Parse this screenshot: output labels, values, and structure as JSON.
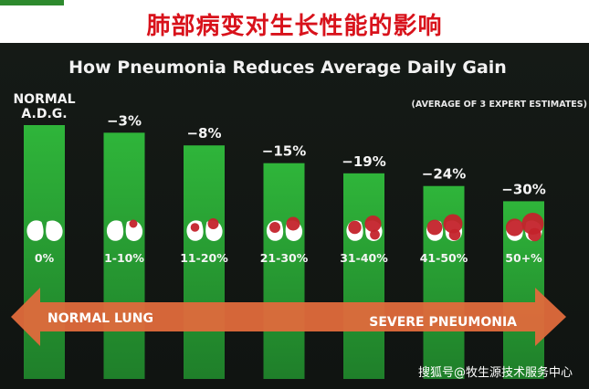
{
  "page_title": "肺部病变对生长性能的影响",
  "watermark": "搜狐号@牧生源技术服务中心",
  "chart_data": {
    "type": "bar",
    "title": "How Pneumonia Reduces Average Daily Gain",
    "subtitle": "(AVERAGE OF 3 EXPERT ESTIMATES)",
    "categories": [
      "0%",
      "1-10%",
      "11-20%",
      "21-30%",
      "31-40%",
      "41-50%",
      "50+%"
    ],
    "value_labels": [
      "NORMAL\nA.D.G.",
      "−3%",
      "−8%",
      "−15%",
      "−19%",
      "−24%",
      "−30%"
    ],
    "values": [
      0,
      -3,
      -8,
      -15,
      -19,
      -24,
      -30
    ],
    "arrow_left_label": "NORMAL LUNG",
    "arrow_right_label": "SEVERE PNEUMONIA",
    "colors": {
      "bar": "#2fb53a",
      "arrow": "#e06a3c",
      "lung_damage": "#c4232b",
      "lung": "#ffffff"
    }
  }
}
